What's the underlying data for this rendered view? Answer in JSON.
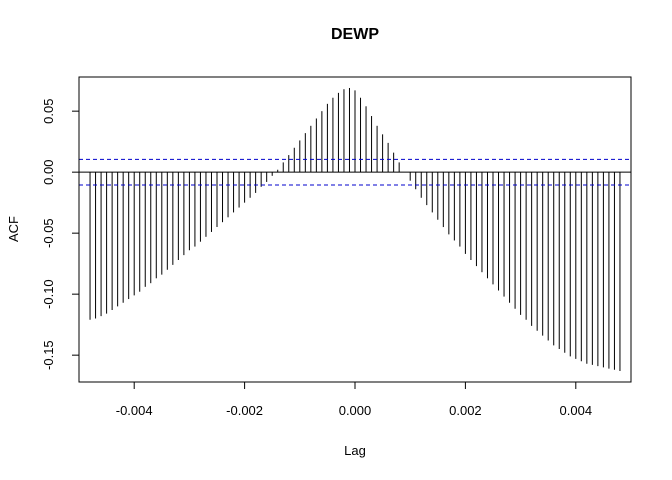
{
  "chart_data": {
    "type": "bar",
    "title": "DEWP",
    "xlabel": "Lag",
    "ylabel": "ACF",
    "xlim": [
      -0.005,
      0.005
    ],
    "ylim": [
      -0.172,
      0.078
    ],
    "x_ticks": [
      -0.004,
      -0.002,
      0.0,
      0.002,
      0.004
    ],
    "x_tick_labels": [
      "-0.004",
      "-0.002",
      "0.000",
      "0.002",
      "0.004"
    ],
    "y_ticks": [
      -0.15,
      -0.1,
      -0.05,
      0.0,
      0.05
    ],
    "y_tick_labels": [
      "-0.15",
      "-0.10",
      "-0.05",
      "0.00",
      "0.05"
    ],
    "confidence_bound": 0.0105,
    "confidence_color": "#0000cc",
    "bar_color": "#000000",
    "grid": false,
    "x": [
      -0.0048,
      -0.0047,
      -0.0046,
      -0.0045,
      -0.0044,
      -0.0043,
      -0.0042,
      -0.0041,
      -0.004,
      -0.0039,
      -0.0038,
      -0.0037,
      -0.0036,
      -0.0035,
      -0.0034,
      -0.0033,
      -0.0032,
      -0.0031,
      -0.003,
      -0.0029,
      -0.0028,
      -0.0027,
      -0.0026,
      -0.0025,
      -0.0024,
      -0.0023,
      -0.0022,
      -0.0021,
      -0.002,
      -0.0019,
      -0.0018,
      -0.0017,
      -0.0016,
      -0.0015,
      -0.0014,
      -0.0013,
      -0.0012,
      -0.0011,
      -0.001,
      -0.0009,
      -0.0008,
      -0.0007,
      -0.0006,
      -0.0005,
      -0.0004,
      -0.0003,
      -0.0002,
      -0.0001,
      0.0,
      0.0001,
      0.0002,
      0.0003,
      0.0004,
      0.0005,
      0.0006,
      0.0007,
      0.0008,
      0.0009,
      0.001,
      0.0011,
      0.0012,
      0.0013,
      0.0014,
      0.0015,
      0.0016,
      0.0017,
      0.0018,
      0.0019,
      0.002,
      0.0021,
      0.0022,
      0.0023,
      0.0024,
      0.0025,
      0.0026,
      0.0027,
      0.0028,
      0.0029,
      0.003,
      0.0031,
      0.0032,
      0.0033,
      0.0034,
      0.0035,
      0.0036,
      0.0037,
      0.0038,
      0.0039,
      0.004,
      0.0041,
      0.0042,
      0.0043,
      0.0044,
      0.0045,
      0.0046,
      0.0047,
      0.0048
    ],
    "values": [
      -0.121,
      -0.12,
      -0.118,
      -0.116,
      -0.113,
      -0.11,
      -0.107,
      -0.104,
      -0.101,
      -0.098,
      -0.094,
      -0.091,
      -0.087,
      -0.084,
      -0.08,
      -0.076,
      -0.072,
      -0.068,
      -0.064,
      -0.061,
      -0.057,
      -0.053,
      -0.049,
      -0.045,
      -0.041,
      -0.037,
      -0.033,
      -0.029,
      -0.025,
      -0.021,
      -0.017,
      -0.012,
      -0.008,
      -0.003,
      0.002,
      0.008,
      0.014,
      0.02,
      0.026,
      0.032,
      0.038,
      0.044,
      0.05,
      0.056,
      0.061,
      0.065,
      0.068,
      0.069,
      0.067,
      0.061,
      0.054,
      0.046,
      0.038,
      0.031,
      0.024,
      0.016,
      0.008,
      0.0,
      -0.007,
      -0.014,
      -0.021,
      -0.027,
      -0.033,
      -0.039,
      -0.045,
      -0.051,
      -0.056,
      -0.061,
      -0.067,
      -0.072,
      -0.077,
      -0.082,
      -0.087,
      -0.092,
      -0.097,
      -0.102,
      -0.107,
      -0.112,
      -0.117,
      -0.121,
      -0.126,
      -0.13,
      -0.134,
      -0.138,
      -0.142,
      -0.145,
      -0.148,
      -0.151,
      -0.153,
      -0.155,
      -0.157,
      -0.158,
      -0.159,
      -0.16,
      -0.161,
      -0.162,
      -0.163
    ]
  }
}
